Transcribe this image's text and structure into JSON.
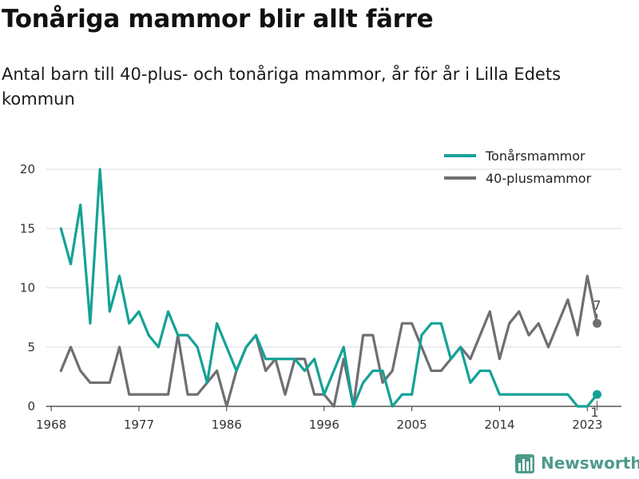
{
  "chart_data": {
    "type": "line",
    "title": "Tonåriga mammor blir allt färre",
    "subtitle": "Antal barn till 40-plus- och tonåriga mammor, år för år i Lilla Edets kommun",
    "x": [
      1969,
      1970,
      1971,
      1972,
      1973,
      1974,
      1975,
      1976,
      1977,
      1978,
      1979,
      1980,
      1981,
      1982,
      1983,
      1984,
      1985,
      1986,
      1987,
      1988,
      1989,
      1990,
      1991,
      1992,
      1993,
      1994,
      1995,
      1996,
      1997,
      1998,
      1999,
      2000,
      2001,
      2002,
      2003,
      2004,
      2005,
      2006,
      2007,
      2008,
      2009,
      2010,
      2011,
      2012,
      2013,
      2014,
      2015,
      2016,
      2017,
      2018,
      2019,
      2020,
      2021,
      2022,
      2023,
      2024
    ],
    "series": [
      {
        "name": "Tonårsmammor",
        "color": "#14a295",
        "values": [
          15,
          12,
          17,
          7,
          20,
          8,
          11,
          7,
          8,
          6,
          5,
          8,
          6,
          6,
          5,
          2,
          7,
          5,
          3,
          5,
          6,
          4,
          4,
          4,
          4,
          3,
          4,
          1,
          3,
          5,
          0,
          2,
          3,
          3,
          0,
          1,
          1,
          6,
          7,
          7,
          4,
          5,
          2,
          3,
          3,
          1,
          1,
          1,
          1,
          1,
          1,
          1,
          1,
          0,
          0,
          1
        ]
      },
      {
        "name": "40-plusmammor",
        "color": "#6f6e73",
        "values": [
          3,
          5,
          3,
          2,
          2,
          2,
          5,
          1,
          1,
          1,
          1,
          1,
          6,
          1,
          1,
          2,
          3,
          0,
          3,
          5,
          6,
          3,
          4,
          1,
          4,
          4,
          1,
          1,
          0,
          4,
          0,
          6,
          6,
          2,
          3,
          7,
          7,
          5,
          3,
          3,
          4,
          5,
          4,
          6,
          8,
          4,
          7,
          8,
          6,
          7,
          5,
          7,
          9,
          6,
          11,
          7
        ]
      }
    ],
    "xticks": [
      "1968",
      "1977",
      "1986",
      "1996",
      "2005",
      "2014",
      "2023"
    ],
    "yticks": [
      "0",
      "5",
      "10",
      "15",
      "20"
    ],
    "xlim": [
      1967.5,
      2026.5
    ],
    "ylim": [
      0,
      20
    ],
    "end_labels": [
      "7",
      "1"
    ],
    "grid": "horizontal",
    "legend_position": "top-right"
  },
  "brand": {
    "name": "Newsworthy"
  }
}
